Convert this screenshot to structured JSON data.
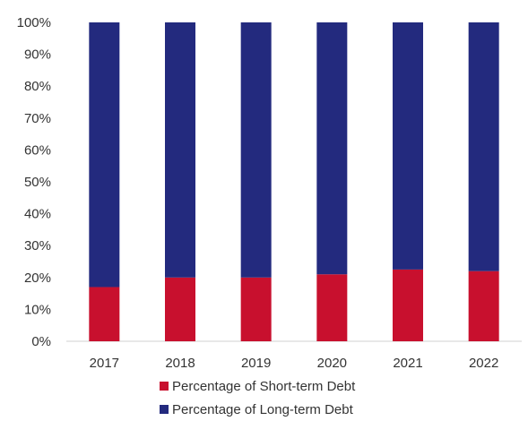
{
  "chart_data": {
    "type": "bar",
    "stacked": true,
    "categories": [
      "2017",
      "2018",
      "2019",
      "2020",
      "2021",
      "2022"
    ],
    "series": [
      {
        "name": "Percentage of Short-term Debt",
        "color": "#c8102e",
        "values": [
          17,
          20,
          20,
          21,
          22.5,
          22
        ]
      },
      {
        "name": "Percentage of Long-term Debt",
        "color": "#232a7e",
        "values": [
          83,
          80,
          80,
          79,
          77.5,
          78
        ]
      }
    ],
    "yticks": [
      "0%",
      "10%",
      "20%",
      "30%",
      "40%",
      "50%",
      "60%",
      "70%",
      "80%",
      "90%",
      "100%"
    ],
    "ylim": [
      0,
      100
    ],
    "grid": false,
    "legend_position": "bottom"
  }
}
